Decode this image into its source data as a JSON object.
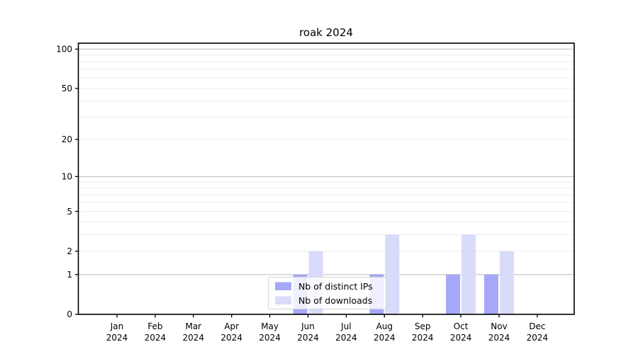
{
  "chart_data": {
    "type": "bar",
    "title": "roak 2024",
    "categories": [
      "Jan",
      "Feb",
      "Mar",
      "Apr",
      "May",
      "Jun",
      "Jul",
      "Aug",
      "Sep",
      "Oct",
      "Nov",
      "Dec"
    ],
    "year_label": "2024",
    "series": [
      {
        "name": "Nb of distinct IPs",
        "color": "#a6a8f7",
        "values": [
          0,
          0,
          0,
          0,
          0,
          1,
          0,
          1,
          0,
          1,
          1,
          0
        ]
      },
      {
        "name": "Nb of downloads",
        "color": "#d9dbfa",
        "values": [
          0,
          0,
          0,
          0,
          0,
          2,
          0,
          3,
          0,
          3,
          2,
          0
        ]
      }
    ],
    "y_axis": {
      "scale": "log1p",
      "ticks": [
        0,
        1,
        2,
        5,
        10,
        20,
        50,
        100
      ],
      "major_gridlines": [
        1,
        10,
        100
      ],
      "minor_gridlines": [
        2,
        3,
        4,
        5,
        6,
        7,
        8,
        9,
        20,
        30,
        40,
        50,
        60,
        70,
        80,
        90
      ],
      "ylim": [
        0,
        110
      ]
    },
    "xlabel": "",
    "ylabel": "",
    "grid": true,
    "legend": {
      "position": "lower center",
      "entries": [
        "Nb of distinct IPs",
        "Nb of downloads"
      ]
    }
  },
  "colors": {
    "background": "#ffffff",
    "axis": "#000000",
    "major_grid": "#c9c9c9",
    "minor_grid": "#ececec",
    "legend_border": "#d4d4d4",
    "legend_background": "rgba(255,255,255,0.82)"
  }
}
